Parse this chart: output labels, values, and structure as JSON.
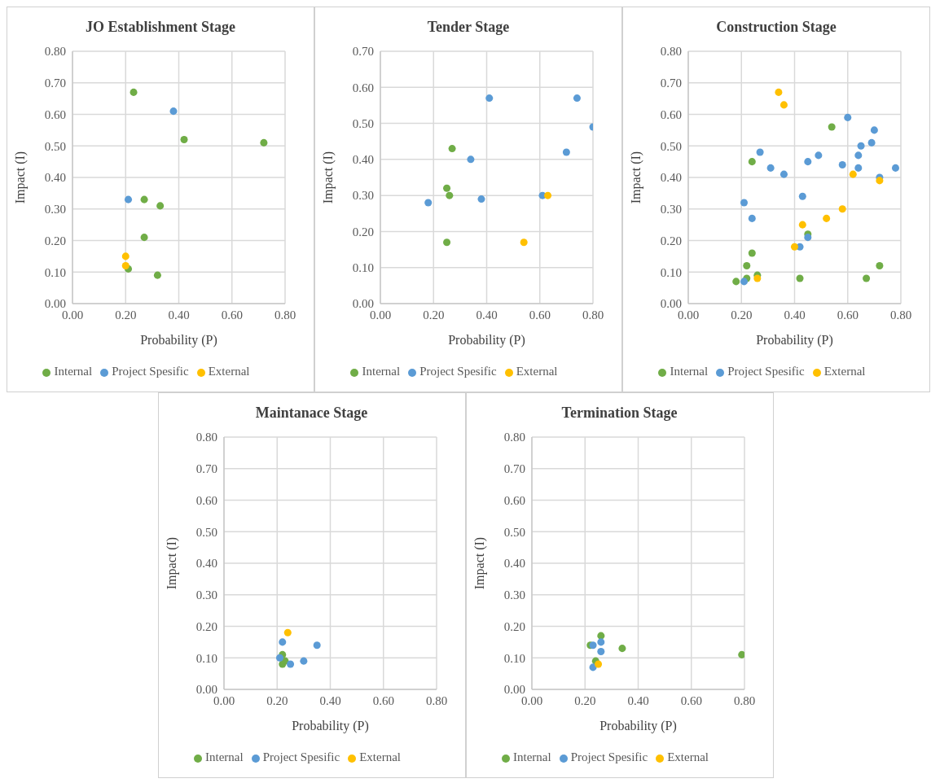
{
  "chart_data": [
    {
      "type": "scatter",
      "title": "JO Establishment Stage",
      "xlabel": "Probability (P)",
      "ylabel": "Impact (I)",
      "xlim": [
        0,
        0.8
      ],
      "ylim": [
        0,
        0.8
      ],
      "xticks": [
        {
          "value": 0,
          "label": "0.00"
        },
        {
          "value": 0.2,
          "label": "0.20"
        },
        {
          "value": 0.4,
          "label": "0.40"
        },
        {
          "value": 0.6,
          "label": "0.60"
        },
        {
          "value": 0.8,
          "label": "0.80"
        }
      ],
      "yticks": [
        {
          "value": 0,
          "label": "0.00"
        },
        {
          "value": 0.1,
          "label": "0.10"
        },
        {
          "value": 0.2,
          "label": "0.20"
        },
        {
          "value": 0.3,
          "label": "0.30"
        },
        {
          "value": 0.4,
          "label": "0.40"
        },
        {
          "value": 0.5,
          "label": "0.50"
        },
        {
          "value": 0.6,
          "label": "0.60"
        },
        {
          "value": 0.7,
          "label": "0.70"
        },
        {
          "value": 0.8,
          "label": "0.80"
        }
      ],
      "grid": true,
      "legend": "bottom",
      "marker": "circle",
      "series": [
        {
          "name": "Internal",
          "color": "#70ad47",
          "x": [
            0.23,
            0.42,
            0.72,
            0.27,
            0.33,
            0.27,
            0.21,
            0.32
          ],
          "values": [
            0.67,
            0.52,
            0.51,
            0.33,
            0.31,
            0.21,
            0.11,
            0.09
          ]
        },
        {
          "name": "Project Spesific",
          "color": "#5b9bd5",
          "x": [
            0.38,
            0.21
          ],
          "values": [
            0.61,
            0.33
          ]
        },
        {
          "name": "External",
          "color": "#ffc000",
          "x": [
            0.2,
            0.2
          ],
          "values": [
            0.15,
            0.12
          ]
        }
      ]
    },
    {
      "type": "scatter",
      "title": "Tender Stage",
      "xlabel": "Probability (P)",
      "ylabel": "Impact (I)",
      "xlim": [
        0,
        0.8
      ],
      "ylim": [
        0,
        0.7
      ],
      "xticks": [
        {
          "value": 0,
          "label": "0.00"
        },
        {
          "value": 0.2,
          "label": "0.20"
        },
        {
          "value": 0.4,
          "label": "0.40"
        },
        {
          "value": 0.6,
          "label": "0.60"
        },
        {
          "value": 0.8,
          "label": "0.80"
        }
      ],
      "yticks": [
        {
          "value": 0,
          "label": "0.00"
        },
        {
          "value": 0.1,
          "label": "0.10"
        },
        {
          "value": 0.2,
          "label": "0.20"
        },
        {
          "value": 0.3,
          "label": "0.30"
        },
        {
          "value": 0.4,
          "label": "0.40"
        },
        {
          "value": 0.5,
          "label": "0.50"
        },
        {
          "value": 0.6,
          "label": "0.60"
        },
        {
          "value": 0.7,
          "label": "0.70"
        }
      ],
      "grid": true,
      "legend": "bottom",
      "marker": "circle",
      "series": [
        {
          "name": "Internal",
          "color": "#70ad47",
          "x": [
            0.27,
            0.25,
            0.26,
            0.25
          ],
          "values": [
            0.43,
            0.32,
            0.3,
            0.17
          ]
        },
        {
          "name": "Project Spesific",
          "color": "#5b9bd5",
          "x": [
            0.41,
            0.74,
            0.8,
            0.7,
            0.34,
            0.18,
            0.38,
            0.61
          ],
          "values": [
            0.57,
            0.57,
            0.49,
            0.42,
            0.4,
            0.28,
            0.29,
            0.3
          ]
        },
        {
          "name": "External",
          "color": "#ffc000",
          "x": [
            0.63,
            0.54
          ],
          "values": [
            0.3,
            0.17
          ]
        }
      ]
    },
    {
      "type": "scatter",
      "title": "Construction Stage",
      "xlabel": "Probability (P)",
      "ylabel": "Impact (I)",
      "xlim": [
        0,
        0.8
      ],
      "ylim": [
        0,
        0.8
      ],
      "xticks": [
        {
          "value": 0,
          "label": "0.00"
        },
        {
          "value": 0.2,
          "label": "0.20"
        },
        {
          "value": 0.4,
          "label": "0.40"
        },
        {
          "value": 0.6,
          "label": "0.60"
        },
        {
          "value": 0.8,
          "label": "0.80"
        }
      ],
      "yticks": [
        {
          "value": 0,
          "label": "0.00"
        },
        {
          "value": 0.1,
          "label": "0.10"
        },
        {
          "value": 0.2,
          "label": "0.20"
        },
        {
          "value": 0.3,
          "label": "0.30"
        },
        {
          "value": 0.4,
          "label": "0.40"
        },
        {
          "value": 0.5,
          "label": "0.50"
        },
        {
          "value": 0.6,
          "label": "0.60"
        },
        {
          "value": 0.7,
          "label": "0.70"
        },
        {
          "value": 0.8,
          "label": "0.80"
        }
      ],
      "grid": true,
      "legend": "bottom",
      "marker": "circle",
      "series": [
        {
          "name": "Internal",
          "color": "#70ad47",
          "x": [
            0.18,
            0.22,
            0.22,
            0.24,
            0.24,
            0.26,
            0.45,
            0.42,
            0.54,
            0.67,
            0.72
          ],
          "values": [
            0.07,
            0.08,
            0.12,
            0.16,
            0.45,
            0.09,
            0.22,
            0.08,
            0.56,
            0.08,
            0.12
          ]
        },
        {
          "name": "Project Spesific",
          "color": "#5b9bd5",
          "x": [
            0.21,
            0.24,
            0.27,
            0.31,
            0.36,
            0.43,
            0.45,
            0.42,
            0.45,
            0.49,
            0.58,
            0.6,
            0.64,
            0.65,
            0.64,
            0.69,
            0.7,
            0.72,
            0.78,
            0.21
          ],
          "values": [
            0.32,
            0.27,
            0.48,
            0.43,
            0.41,
            0.34,
            0.45,
            0.18,
            0.21,
            0.47,
            0.44,
            0.59,
            0.47,
            0.5,
            0.43,
            0.51,
            0.55,
            0.4,
            0.43,
            0.07
          ]
        },
        {
          "name": "External",
          "color": "#ffc000",
          "x": [
            0.34,
            0.36,
            0.43,
            0.4,
            0.52,
            0.58,
            0.62,
            0.72,
            0.26
          ],
          "values": [
            0.67,
            0.63,
            0.25,
            0.18,
            0.27,
            0.3,
            0.41,
            0.39,
            0.08
          ]
        }
      ]
    },
    {
      "type": "scatter",
      "title": "Maintanace Stage",
      "xlabel": "Probability (P)",
      "ylabel": "Impact (I)",
      "xlim": [
        0,
        0.8
      ],
      "ylim": [
        0,
        0.8
      ],
      "xticks": [
        {
          "value": 0,
          "label": "0.00"
        },
        {
          "value": 0.2,
          "label": "0.20"
        },
        {
          "value": 0.4,
          "label": "0.40"
        },
        {
          "value": 0.6,
          "label": "0.60"
        },
        {
          "value": 0.8,
          "label": "0.80"
        }
      ],
      "yticks": [
        {
          "value": 0,
          "label": "0.00"
        },
        {
          "value": 0.1,
          "label": "0.10"
        },
        {
          "value": 0.2,
          "label": "0.20"
        },
        {
          "value": 0.3,
          "label": "0.30"
        },
        {
          "value": 0.4,
          "label": "0.40"
        },
        {
          "value": 0.5,
          "label": "0.50"
        },
        {
          "value": 0.6,
          "label": "0.60"
        },
        {
          "value": 0.7,
          "label": "0.70"
        },
        {
          "value": 0.8,
          "label": "0.80"
        }
      ],
      "grid": true,
      "legend": "bottom",
      "marker": "circle",
      "series": [
        {
          "name": "Internal",
          "color": "#70ad47",
          "x": [
            0.22,
            0.22,
            0.23
          ],
          "values": [
            0.11,
            0.08,
            0.09
          ]
        },
        {
          "name": "Project Spesific",
          "color": "#5b9bd5",
          "x": [
            0.21,
            0.22,
            0.25,
            0.3,
            0.35
          ],
          "values": [
            0.1,
            0.15,
            0.08,
            0.09,
            0.14
          ]
        },
        {
          "name": "External",
          "color": "#ffc000",
          "x": [
            0.24
          ],
          "values": [
            0.18
          ]
        }
      ]
    },
    {
      "type": "scatter",
      "title": "Termination Stage",
      "xlabel": "Probability (P)",
      "ylabel": "Impact (I)",
      "xlim": [
        0,
        0.8
      ],
      "ylim": [
        0,
        0.8
      ],
      "xticks": [
        {
          "value": 0,
          "label": "0.00"
        },
        {
          "value": 0.2,
          "label": "0.20"
        },
        {
          "value": 0.4,
          "label": "0.40"
        },
        {
          "value": 0.6,
          "label": "0.60"
        },
        {
          "value": 0.8,
          "label": "0.80"
        }
      ],
      "yticks": [
        {
          "value": 0,
          "label": "0.00"
        },
        {
          "value": 0.1,
          "label": "0.10"
        },
        {
          "value": 0.2,
          "label": "0.20"
        },
        {
          "value": 0.3,
          "label": "0.30"
        },
        {
          "value": 0.4,
          "label": "0.40"
        },
        {
          "value": 0.5,
          "label": "0.50"
        },
        {
          "value": 0.6,
          "label": "0.60"
        },
        {
          "value": 0.7,
          "label": "0.70"
        },
        {
          "value": 0.8,
          "label": "0.80"
        }
      ],
      "grid": true,
      "legend": "bottom",
      "marker": "circle",
      "series": [
        {
          "name": "Internal",
          "color": "#70ad47",
          "x": [
            0.26,
            0.22,
            0.34,
            0.79,
            0.24
          ],
          "values": [
            0.17,
            0.14,
            0.13,
            0.11,
            0.09
          ]
        },
        {
          "name": "Project Spesific",
          "color": "#5b9bd5",
          "x": [
            0.23,
            0.26,
            0.26,
            0.23
          ],
          "values": [
            0.14,
            0.15,
            0.12,
            0.07
          ]
        },
        {
          "name": "External",
          "color": "#ffc000",
          "x": [
            0.25
          ],
          "values": [
            0.08
          ]
        }
      ]
    }
  ]
}
